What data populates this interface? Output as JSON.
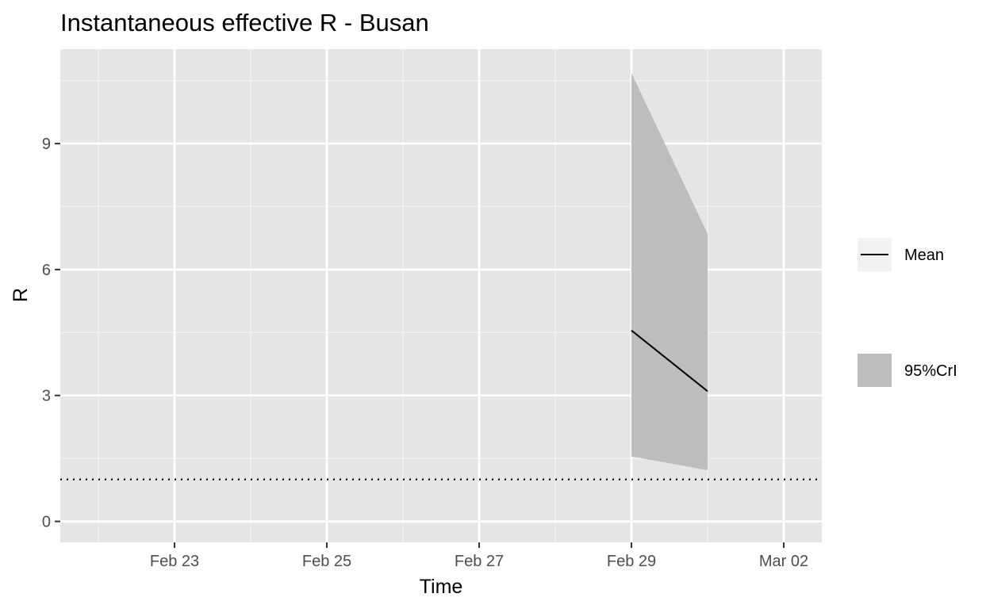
{
  "chart_data": {
    "type": "line",
    "title": "Instantaneous effective R -  Busan",
    "xlabel": "Time",
    "ylabel": "R",
    "x_ticks": [
      "Feb 23",
      "Feb 25",
      "Feb 27",
      "Feb 29",
      "Mar 02"
    ],
    "y_ticks": [
      0,
      3,
      6,
      9
    ],
    "xlim": [
      "2020-02-21T12:00",
      "2020-03-02T12:00"
    ],
    "ylim": [
      -0.5,
      11.25
    ],
    "grid": true,
    "legend_position": "right",
    "threshold": {
      "value": 1,
      "style": "dotted"
    },
    "series": [
      {
        "name": "Mean",
        "kind": "line",
        "color": "#000000",
        "x": [
          "2020-02-29",
          "2020-03-01"
        ],
        "y": [
          4.55,
          3.1
        ]
      },
      {
        "name": "95%CrI",
        "kind": "ribbon",
        "color": "#bdbdbd",
        "x": [
          "2020-02-29",
          "2020-03-01"
        ],
        "lower": [
          1.55,
          1.22
        ],
        "upper": [
          10.68,
          6.85
        ]
      }
    ]
  }
}
